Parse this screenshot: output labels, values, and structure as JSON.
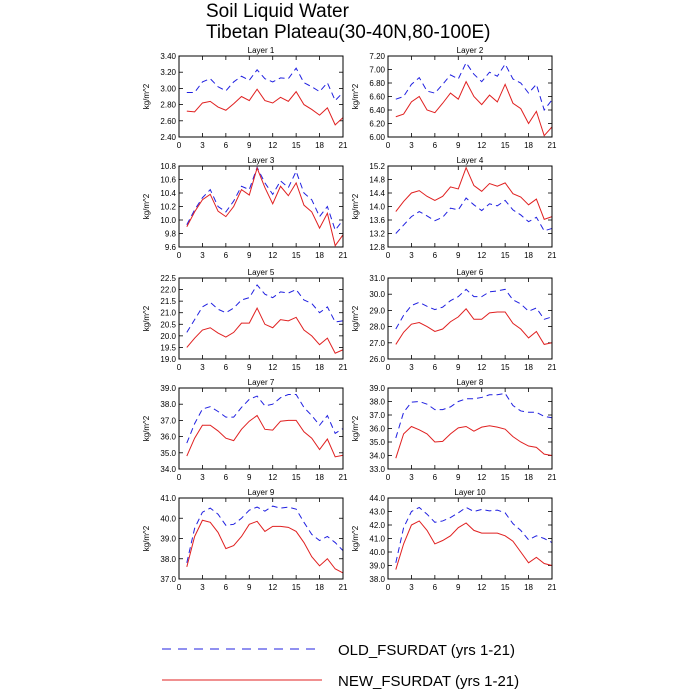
{
  "title_line1": "Soil Liquid Water",
  "title_line2": "Tibetan Plateau(30-40N,80-100E)",
  "legend": [
    {
      "label": "OLD_FSURDAT (yrs 1-21)",
      "color": "#2020e0",
      "dash": "dashed"
    },
    {
      "label": "NEW_FSURDAT (yrs 1-21)",
      "color": "#e02020",
      "dash": "solid"
    }
  ],
  "chart_data": [
    {
      "type": "line",
      "title": "Layer 1",
      "ylabel": "kg/m^2",
      "xlim": [
        0,
        21
      ],
      "ylim": [
        2.4,
        3.4
      ],
      "xticks": [
        0,
        3,
        6,
        9,
        12,
        15,
        18,
        21
      ],
      "yticks": [
        "2.40",
        "2.60",
        "2.80",
        "3.00",
        "3.20",
        "3.40"
      ],
      "x": [
        1,
        2,
        3,
        4,
        5,
        6,
        7,
        8,
        9,
        10,
        11,
        12,
        13,
        14,
        15,
        16,
        17,
        18,
        19,
        20,
        21
      ],
      "series": [
        {
          "name": "OLD_FSURDAT (yrs 1-21)",
          "values": [
            2.95,
            2.95,
            3.08,
            3.12,
            3.02,
            2.97,
            3.08,
            3.15,
            3.1,
            3.23,
            3.12,
            3.08,
            3.13,
            3.12,
            3.25,
            3.07,
            3.02,
            2.96,
            3.07,
            2.85,
            2.95
          ]
        },
        {
          "name": "NEW_FSURDAT (yrs 1-21)",
          "values": [
            2.72,
            2.71,
            2.82,
            2.84,
            2.77,
            2.73,
            2.81,
            2.9,
            2.85,
            2.99,
            2.85,
            2.82,
            2.89,
            2.84,
            2.96,
            2.8,
            2.74,
            2.67,
            2.76,
            2.55,
            2.64
          ]
        }
      ]
    },
    {
      "type": "line",
      "title": "Layer 2",
      "ylabel": "kg/m^2",
      "xlim": [
        0,
        21
      ],
      "ylim": [
        6.0,
        7.2
      ],
      "xticks": [
        0,
        3,
        6,
        9,
        12,
        15,
        18,
        21
      ],
      "yticks": [
        "6.00",
        "6.20",
        "6.40",
        "6.60",
        "6.80",
        "7.00",
        "7.20"
      ],
      "x": [
        1,
        2,
        3,
        4,
        5,
        6,
        7,
        8,
        9,
        10,
        11,
        12,
        13,
        14,
        15,
        16,
        17,
        18,
        19,
        20,
        21
      ],
      "series": [
        {
          "name": "OLD_FSURDAT (yrs 1-21)",
          "values": [
            6.56,
            6.6,
            6.78,
            6.88,
            6.68,
            6.65,
            6.78,
            6.92,
            6.86,
            7.1,
            6.93,
            6.82,
            6.96,
            6.9,
            7.08,
            6.86,
            6.8,
            6.65,
            6.78,
            6.4,
            6.55
          ]
        },
        {
          "name": "NEW_FSURDAT (yrs 1-21)",
          "values": [
            6.3,
            6.34,
            6.52,
            6.6,
            6.4,
            6.36,
            6.5,
            6.65,
            6.56,
            6.82,
            6.6,
            6.48,
            6.62,
            6.52,
            6.78,
            6.5,
            6.42,
            6.2,
            6.38,
            6.02,
            6.15
          ]
        }
      ]
    },
    {
      "type": "line",
      "title": "Layer 3",
      "ylabel": "kg/m^2",
      "xlim": [
        0,
        21
      ],
      "ylim": [
        9.6,
        10.8
      ],
      "xticks": [
        0,
        3,
        6,
        9,
        12,
        15,
        18,
        21
      ],
      "yticks": [
        "9.6",
        "9.8",
        "10.0",
        "10.2",
        "10.4",
        "10.6",
        "10.8"
      ],
      "x": [
        1,
        2,
        3,
        4,
        5,
        6,
        7,
        8,
        9,
        10,
        11,
        12,
        13,
        14,
        15,
        16,
        17,
        18,
        19,
        20,
        21
      ],
      "series": [
        {
          "name": "OLD_FSURDAT (yrs 1-21)",
          "values": [
            9.93,
            10.15,
            10.33,
            10.45,
            10.2,
            10.12,
            10.28,
            10.5,
            10.45,
            10.78,
            10.55,
            10.38,
            10.58,
            10.48,
            10.72,
            10.4,
            10.3,
            10.05,
            10.2,
            9.85,
            10.0
          ]
        },
        {
          "name": "NEW_FSURDAT (yrs 1-21)",
          "values": [
            9.9,
            10.12,
            10.3,
            10.38,
            10.13,
            10.05,
            10.2,
            10.45,
            10.37,
            10.77,
            10.48,
            10.24,
            10.5,
            10.36,
            10.55,
            10.22,
            10.12,
            9.88,
            10.1,
            9.62,
            9.78
          ]
        }
      ]
    },
    {
      "type": "line",
      "title": "Layer 4",
      "ylabel": "kg/m^2",
      "xlim": [
        0,
        21
      ],
      "ylim": [
        12.8,
        15.2
      ],
      "xticks": [
        0,
        3,
        6,
        9,
        12,
        15,
        18,
        21
      ],
      "yticks": [
        "12.8",
        "13.2",
        "13.6",
        "14.0",
        "14.4",
        "14.8",
        "15.2"
      ],
      "x": [
        1,
        2,
        3,
        4,
        5,
        6,
        7,
        8,
        9,
        10,
        11,
        12,
        13,
        14,
        15,
        16,
        17,
        18,
        19,
        20,
        21
      ],
      "series": [
        {
          "name": "OLD_FSURDAT (yrs 1-21)",
          "values": [
            13.2,
            13.45,
            13.7,
            13.85,
            13.72,
            13.58,
            13.68,
            13.95,
            13.9,
            14.25,
            14.05,
            13.88,
            14.08,
            14.02,
            14.18,
            13.9,
            13.75,
            13.55,
            13.68,
            13.28,
            13.35
          ]
        },
        {
          "name": "NEW_FSURDAT (yrs 1-21)",
          "values": [
            13.85,
            14.15,
            14.4,
            14.47,
            14.3,
            14.18,
            14.3,
            14.58,
            14.52,
            15.15,
            14.62,
            14.45,
            14.68,
            14.6,
            14.7,
            14.38,
            14.28,
            14.05,
            14.22,
            13.62,
            13.7
          ]
        }
      ]
    },
    {
      "type": "line",
      "title": "Layer 5",
      "ylabel": "kg/m^2",
      "xlim": [
        0,
        21
      ],
      "ylim": [
        19.0,
        22.5
      ],
      "xticks": [
        0,
        3,
        6,
        9,
        12,
        15,
        18,
        21
      ],
      "yticks": [
        "19.0",
        "19.5",
        "20.0",
        "20.5",
        "21.0",
        "21.5",
        "22.0",
        "22.5"
      ],
      "x": [
        1,
        2,
        3,
        4,
        5,
        6,
        7,
        8,
        9,
        10,
        11,
        12,
        13,
        14,
        15,
        16,
        17,
        18,
        19,
        20,
        21
      ],
      "series": [
        {
          "name": "OLD_FSURDAT (yrs 1-21)",
          "values": [
            20.15,
            20.7,
            21.25,
            21.45,
            21.15,
            21.0,
            21.2,
            21.55,
            21.65,
            22.2,
            21.8,
            21.65,
            21.9,
            21.85,
            22.0,
            21.55,
            21.4,
            21.0,
            21.25,
            20.6,
            20.65
          ]
        },
        {
          "name": "NEW_FSURDAT (yrs 1-21)",
          "values": [
            19.5,
            19.9,
            20.25,
            20.35,
            20.12,
            19.95,
            20.15,
            20.55,
            20.55,
            21.2,
            20.5,
            20.35,
            20.7,
            20.65,
            20.8,
            20.25,
            20.0,
            19.62,
            19.9,
            19.25,
            19.4
          ]
        }
      ]
    },
    {
      "type": "line",
      "title": "Layer 6",
      "ylabel": "kg/m^2",
      "xlim": [
        0,
        21
      ],
      "ylim": [
        26.0,
        31.0
      ],
      "xticks": [
        0,
        3,
        6,
        9,
        12,
        15,
        18,
        21
      ],
      "yticks": [
        "26.0",
        "27.0",
        "28.0",
        "29.0",
        "30.0",
        "31.0"
      ],
      "x": [
        1,
        2,
        3,
        4,
        5,
        6,
        7,
        8,
        9,
        10,
        11,
        12,
        13,
        14,
        15,
        16,
        17,
        18,
        19,
        20,
        21
      ],
      "series": [
        {
          "name": "OLD_FSURDAT (yrs 1-21)",
          "values": [
            27.85,
            28.7,
            29.3,
            29.5,
            29.25,
            29.05,
            29.2,
            29.6,
            29.85,
            30.3,
            29.85,
            29.85,
            30.15,
            30.2,
            30.3,
            29.65,
            29.4,
            28.95,
            29.15,
            28.45,
            28.6
          ]
        },
        {
          "name": "NEW_FSURDAT (yrs 1-21)",
          "values": [
            26.9,
            27.65,
            28.15,
            28.25,
            28.0,
            27.7,
            27.85,
            28.3,
            28.6,
            29.1,
            28.45,
            28.45,
            28.85,
            28.9,
            28.9,
            28.2,
            27.85,
            27.3,
            27.7,
            26.9,
            27.0
          ]
        }
      ]
    },
    {
      "type": "line",
      "title": "Layer 7",
      "ylabel": "kg/m^2",
      "xlim": [
        0,
        21
      ],
      "ylim": [
        34.0,
        39.0
      ],
      "xticks": [
        0,
        3,
        6,
        9,
        12,
        15,
        18,
        21
      ],
      "yticks": [
        "34.0",
        "35.0",
        "36.0",
        "37.0",
        "38.0",
        "39.0"
      ],
      "x": [
        1,
        2,
        3,
        4,
        5,
        6,
        7,
        8,
        9,
        10,
        11,
        12,
        13,
        14,
        15,
        16,
        17,
        18,
        19,
        20,
        21
      ],
      "series": [
        {
          "name": "OLD_FSURDAT (yrs 1-21)",
          "values": [
            35.6,
            36.8,
            37.7,
            37.85,
            37.55,
            37.2,
            37.2,
            37.8,
            38.3,
            38.5,
            37.9,
            38.0,
            38.4,
            38.6,
            38.6,
            37.8,
            37.3,
            36.7,
            37.3,
            36.2,
            36.5
          ]
        },
        {
          "name": "NEW_FSURDAT (yrs 1-21)",
          "values": [
            34.8,
            35.9,
            36.7,
            36.7,
            36.35,
            35.9,
            35.75,
            36.45,
            36.95,
            37.3,
            36.45,
            36.4,
            36.95,
            37.0,
            37.0,
            36.3,
            35.9,
            35.2,
            35.85,
            34.75,
            34.85
          ]
        }
      ]
    },
    {
      "type": "line",
      "title": "Layer 8",
      "ylabel": "kg/m^2",
      "xlim": [
        0,
        21
      ],
      "ylim": [
        33.0,
        39.0
      ],
      "xticks": [
        0,
        3,
        6,
        9,
        12,
        15,
        18,
        21
      ],
      "yticks": [
        "33.0",
        "34.0",
        "35.0",
        "36.0",
        "37.0",
        "38.0",
        "39.0"
      ],
      "x": [
        1,
        2,
        3,
        4,
        5,
        6,
        7,
        8,
        9,
        10,
        11,
        12,
        13,
        14,
        15,
        16,
        17,
        18,
        19,
        20,
        21
      ],
      "series": [
        {
          "name": "OLD_FSURDAT (yrs 1-21)",
          "values": [
            35.3,
            37.2,
            37.95,
            38.0,
            37.8,
            37.4,
            37.4,
            37.6,
            38.0,
            38.2,
            38.2,
            38.3,
            38.5,
            38.5,
            38.6,
            37.7,
            37.3,
            37.2,
            37.2,
            36.9,
            36.8
          ]
        },
        {
          "name": "NEW_FSURDAT (yrs 1-21)",
          "values": [
            33.8,
            35.6,
            36.15,
            35.9,
            35.6,
            35.0,
            35.05,
            35.6,
            36.05,
            36.15,
            35.8,
            36.1,
            36.2,
            36.1,
            35.95,
            35.4,
            35.0,
            34.7,
            34.6,
            34.1,
            34.0
          ]
        }
      ]
    },
    {
      "type": "line",
      "title": "Layer 9",
      "ylabel": "kg/m^2",
      "xlim": [
        0,
        21
      ],
      "ylim": [
        37.0,
        41.0
      ],
      "xticks": [
        0,
        3,
        6,
        9,
        12,
        15,
        18,
        21
      ],
      "yticks": [
        "37.0",
        "38.0",
        "39.0",
        "40.0",
        "41.0"
      ],
      "x": [
        1,
        2,
        3,
        4,
        5,
        6,
        7,
        8,
        9,
        10,
        11,
        12,
        13,
        14,
        15,
        16,
        17,
        18,
        19,
        20,
        21
      ],
      "series": [
        {
          "name": "OLD_FSURDAT (yrs 1-21)",
          "values": [
            37.8,
            39.5,
            40.3,
            40.5,
            40.2,
            39.65,
            39.7,
            40.0,
            40.4,
            40.55,
            40.35,
            40.6,
            40.5,
            40.55,
            40.45,
            39.8,
            39.2,
            38.9,
            39.1,
            38.8,
            38.4
          ]
        },
        {
          "name": "NEW_FSURDAT (yrs 1-21)",
          "values": [
            37.6,
            39.1,
            39.9,
            39.8,
            39.3,
            38.5,
            38.65,
            39.1,
            39.7,
            39.85,
            39.35,
            39.6,
            39.6,
            39.55,
            39.35,
            38.8,
            38.1,
            37.65,
            38.0,
            37.5,
            37.3
          ]
        }
      ]
    },
    {
      "type": "line",
      "title": "Layer 10",
      "ylabel": "kg/m^2",
      "xlim": [
        0,
        21
      ],
      "ylim": [
        38.0,
        44.0
      ],
      "xticks": [
        0,
        3,
        6,
        9,
        12,
        15,
        18,
        21
      ],
      "yticks": [
        "38.0",
        "39.0",
        "40.0",
        "41.0",
        "42.0",
        "43.0",
        "44.0"
      ],
      "x": [
        1,
        2,
        3,
        4,
        5,
        6,
        7,
        8,
        9,
        10,
        11,
        12,
        13,
        14,
        15,
        16,
        17,
        18,
        19,
        20,
        21
      ],
      "series": [
        {
          "name": "OLD_FSURDAT (yrs 1-21)",
          "values": [
            39.2,
            41.8,
            43.0,
            43.3,
            42.8,
            42.2,
            42.3,
            42.55,
            42.9,
            43.3,
            43.0,
            43.15,
            43.05,
            43.1,
            42.9,
            42.1,
            41.6,
            40.9,
            41.2,
            41.0,
            40.7
          ]
        },
        {
          "name": "NEW_FSURDAT (yrs 1-21)",
          "values": [
            38.7,
            40.6,
            42.0,
            42.3,
            41.6,
            40.6,
            40.85,
            41.2,
            41.8,
            42.15,
            41.6,
            41.4,
            41.4,
            41.4,
            41.2,
            40.8,
            40.0,
            39.2,
            39.6,
            39.15,
            39.0
          ]
        }
      ]
    }
  ]
}
